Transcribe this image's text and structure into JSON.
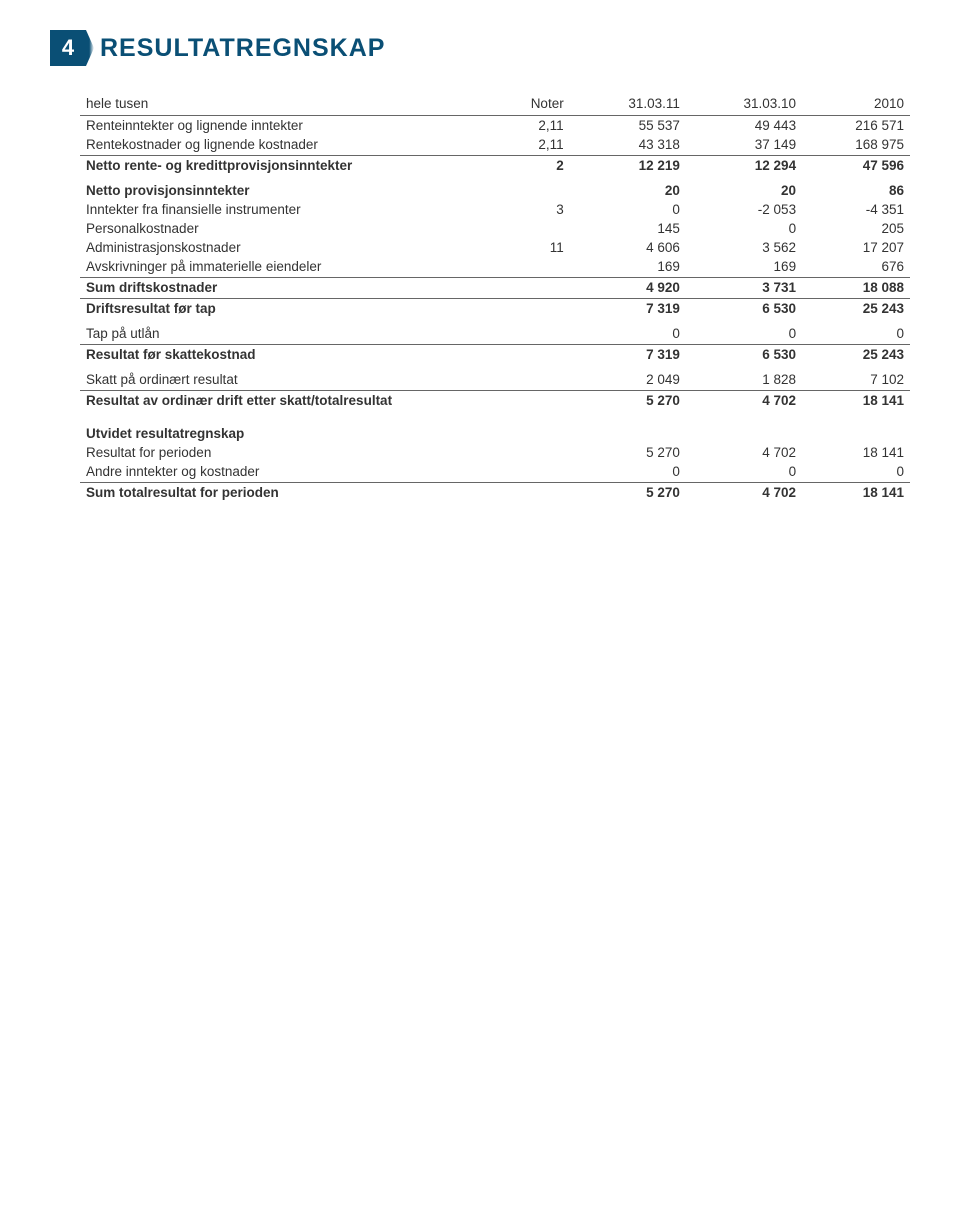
{
  "page_number": "4",
  "title": "RESULTATREGNSKAP",
  "table": {
    "headers": [
      "hele tusen",
      "Noter",
      "31.03.11",
      "31.03.10",
      "2010"
    ],
    "rows": [
      {
        "cells": [
          "Renteinntekter og lignende inntekter",
          "2,11",
          "55 537",
          "49 443",
          "216 571"
        ],
        "bold": false,
        "border": false
      },
      {
        "cells": [
          "Rentekostnader og lignende kostnader",
          "2,11",
          "43 318",
          "37 149",
          "168 975"
        ],
        "bold": false,
        "border": true
      },
      {
        "cells": [
          "Netto rente- og kredittprovisjonsinntekter",
          "2",
          "12 219",
          "12 294",
          "47 596"
        ],
        "bold": true,
        "border": false
      }
    ],
    "rows2": [
      {
        "cells": [
          "Netto provisjonsinntekter",
          "",
          "20",
          "20",
          "86"
        ],
        "bold": true,
        "border": false
      },
      {
        "cells": [
          "Inntekter fra finansielle instrumenter",
          "3",
          "0",
          "-2 053",
          "-4 351"
        ],
        "bold": false,
        "border": false
      },
      {
        "cells": [
          "Personalkostnader",
          "",
          "145",
          "0",
          "205"
        ],
        "bold": false,
        "border": false
      },
      {
        "cells": [
          "Administrasjonskostnader",
          "11",
          "4 606",
          "3 562",
          "17 207"
        ],
        "bold": false,
        "border": false
      },
      {
        "cells": [
          "Avskrivninger på immaterielle eiendeler",
          "",
          "169",
          "169",
          "676"
        ],
        "bold": false,
        "border": true
      },
      {
        "cells": [
          "Sum driftskostnader",
          "",
          "4 920",
          "3 731",
          "18 088"
        ],
        "bold": true,
        "border": true
      },
      {
        "cells": [
          "Driftsresultat før tap",
          "",
          "7 319",
          "6 530",
          "25 243"
        ],
        "bold": true,
        "border": false
      }
    ],
    "rows3": [
      {
        "cells": [
          "Tap på utlån",
          "",
          "0",
          "0",
          "0"
        ],
        "bold": false,
        "border": true
      },
      {
        "cells": [
          "Resultat før skattekostnad",
          "",
          "7 319",
          "6 530",
          "25 243"
        ],
        "bold": true,
        "border": false
      }
    ],
    "rows4": [
      {
        "cells": [
          "Skatt på ordinært resultat",
          "",
          "2 049",
          "1 828",
          "7 102"
        ],
        "bold": false,
        "border": true
      },
      {
        "cells": [
          "Resultat av ordinær drift etter skatt/totalresultat",
          "",
          "5 270",
          "4 702",
          "18 141"
        ],
        "bold": true,
        "border": false
      }
    ],
    "rows5": [
      {
        "cells": [
          "Utvidet resultatregnskap",
          "",
          "",
          "",
          ""
        ],
        "bold": true,
        "border": false
      },
      {
        "cells": [
          "Resultat for perioden",
          "",
          "5 270",
          "4 702",
          "18 141"
        ],
        "bold": false,
        "border": false
      },
      {
        "cells": [
          "Andre inntekter og kostnader",
          "",
          "0",
          "0",
          "0"
        ],
        "bold": false,
        "border": true
      },
      {
        "cells": [
          "Sum totalresultat for perioden",
          "",
          "5 270",
          "4 702",
          "18 141"
        ],
        "bold": true,
        "border": false
      }
    ]
  },
  "colors": {
    "brand": "#0a4f75",
    "text": "#333333",
    "border": "#666666",
    "background": "#ffffff"
  },
  "typography": {
    "title_fontsize": 25,
    "body_fontsize": 13.5,
    "page_num_fontsize": 22
  }
}
